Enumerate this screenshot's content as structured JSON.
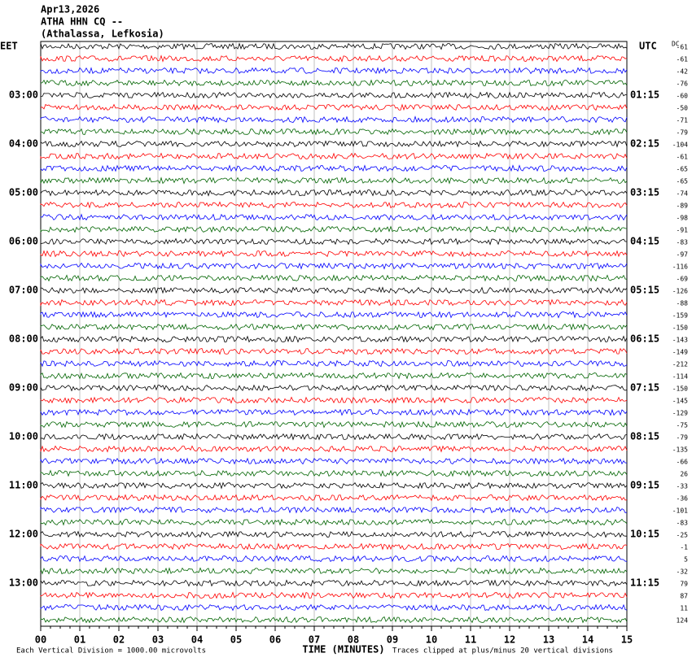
{
  "header": [
    "Apr13,2026",
    "ATHA HHN CQ --",
    "(Athalassa, Lefkosia)"
  ],
  "left_zone": "EET",
  "right_zone": "UTC",
  "dc_label": "DC",
  "left_times": [
    "03:00",
    "04:00",
    "05:00",
    "06:00",
    "07:00",
    "08:00",
    "09:00",
    "10:00",
    "11:00",
    "12:00",
    "13:00"
  ],
  "right_times": [
    "01:15",
    "02:15",
    "03:15",
    "04:15",
    "05:15",
    "06:15",
    "07:15",
    "08:15",
    "09:15",
    "10:15",
    "11:15"
  ],
  "dc_offsets": [
    -61,
    -61,
    -42,
    -76,
    -60,
    -50,
    -71,
    -79,
    -104,
    -61,
    -65,
    -65,
    -74,
    -89,
    -98,
    -91,
    -83,
    -97,
    -116,
    -69,
    -126,
    -88,
    -159,
    -150,
    -143,
    -149,
    -212,
    -114,
    -150,
    -145,
    -129,
    -75,
    -79,
    -135,
    -66,
    26,
    -33,
    -36,
    -101,
    -83,
    -25,
    -1,
    5,
    -32,
    79,
    87,
    11,
    124
  ],
  "trace_colors": [
    "#000000",
    "#ff0000",
    "#0000ff",
    "#006400"
  ],
  "x_ticks": [
    "00",
    "01",
    "02",
    "03",
    "04",
    "05",
    "06",
    "07",
    "08",
    "09",
    "10",
    "11",
    "12",
    "13",
    "14",
    "15"
  ],
  "x_label": "TIME (MINUTES)",
  "scale_note": "Each Vertical Division = 1000.00 microvolts",
  "clip_note": "Traces clipped at plus/minus 20 vertical divisions"
}
